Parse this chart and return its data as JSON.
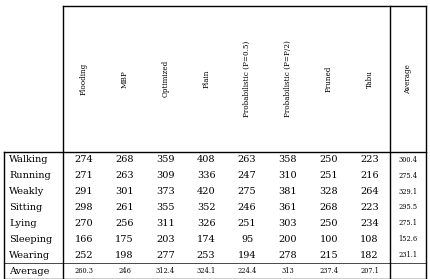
{
  "col_headers": [
    "Flooding",
    "MBP",
    "Optimized",
    "Plain",
    "Probabilistic (P=0.5)",
    "Probabilistic (P=P/2)",
    "Pruned",
    "Tabu",
    "Average"
  ],
  "row_headers": [
    "Walking",
    "Running",
    "Weakly",
    "Sitting",
    "Lying",
    "Sleeping",
    "Wearing",
    "Average"
  ],
  "data": [
    [
      "274",
      "268",
      "359",
      "408",
      "263",
      "358",
      "250",
      "223",
      "300.4"
    ],
    [
      "271",
      "263",
      "309",
      "336",
      "247",
      "310",
      "251",
      "216",
      "275.4"
    ],
    [
      "291",
      "301",
      "373",
      "420",
      "275",
      "381",
      "328",
      "264",
      "329.1"
    ],
    [
      "298",
      "261",
      "355",
      "352",
      "246",
      "361",
      "268",
      "223",
      "295.5"
    ],
    [
      "270",
      "256",
      "311",
      "326",
      "251",
      "303",
      "250",
      "234",
      "275.1"
    ],
    [
      "166",
      "175",
      "203",
      "174",
      "95",
      "200",
      "100",
      "108",
      "152.6"
    ],
    [
      "252",
      "198",
      "277",
      "253",
      "194",
      "278",
      "215",
      "182",
      "231.1"
    ],
    [
      "260.3",
      "246",
      "312.4",
      "324.1",
      "224.4",
      "313",
      "237.4",
      "207.1",
      ""
    ]
  ],
  "fig_width": 4.3,
  "fig_height": 2.79,
  "dpi": 100
}
